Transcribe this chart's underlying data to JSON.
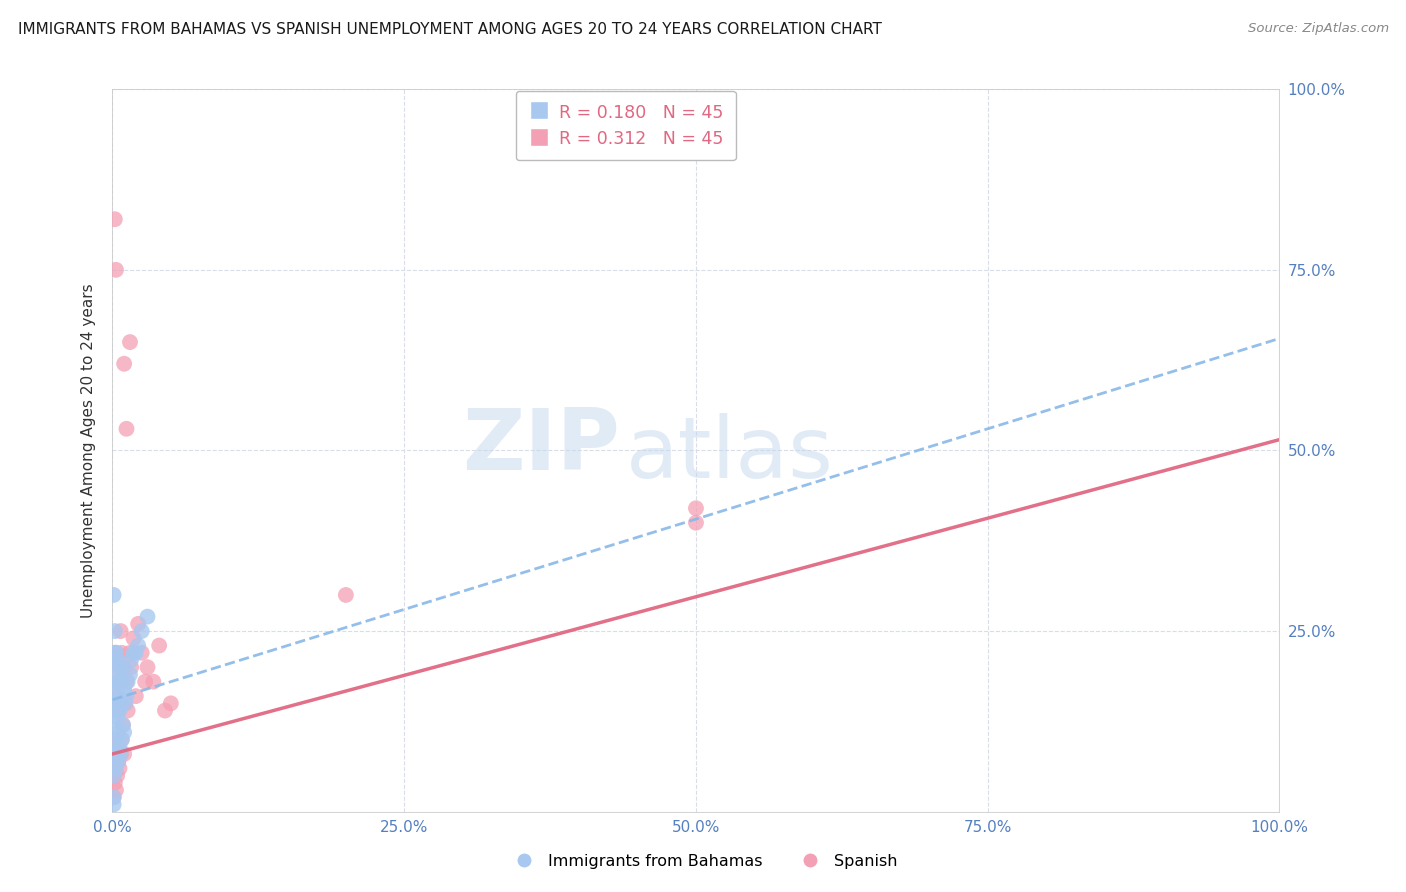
{
  "title": "IMMIGRANTS FROM BAHAMAS VS SPANISH UNEMPLOYMENT AMONG AGES 20 TO 24 YEARS CORRELATION CHART",
  "source": "Source: ZipAtlas.com",
  "ylabel": "Unemployment Among Ages 20 to 24 years",
  "xlim": [
    0.0,
    1.0
  ],
  "ylim": [
    0.0,
    1.0
  ],
  "xtick_vals": [
    0.0,
    0.25,
    0.5,
    0.75,
    1.0
  ],
  "xticklabels": [
    "0.0%",
    "25.0%",
    "50.0%",
    "75.0%",
    "100.0%"
  ],
  "ytick_vals": [
    0.0,
    0.25,
    0.5,
    0.75,
    1.0
  ],
  "yticklabels": [
    "",
    "25.0%",
    "50.0%",
    "75.0%",
    "100.0%"
  ],
  "legend_r1": "R = 0.180",
  "legend_n1": "N = 45",
  "legend_r2": "R = 0.312",
  "legend_n2": "N = 45",
  "color_blue": "#a8c8f0",
  "color_pink": "#f4a0b4",
  "line_blue_color": "#88b8e8",
  "line_pink_color": "#e06882",
  "watermark_zip": "ZIP",
  "watermark_atlas": "atlas",
  "grid_color": "#d8dde8",
  "blue_intercept": 0.155,
  "blue_slope": 0.5,
  "pink_intercept": 0.08,
  "pink_slope": 0.435,
  "blue_dots": {
    "x": [
      0.001,
      0.001,
      0.001,
      0.002,
      0.002,
      0.002,
      0.002,
      0.003,
      0.003,
      0.003,
      0.003,
      0.004,
      0.004,
      0.004,
      0.005,
      0.005,
      0.005,
      0.006,
      0.006,
      0.007,
      0.007,
      0.008,
      0.008,
      0.009,
      0.009,
      0.01,
      0.01,
      0.011,
      0.012,
      0.013,
      0.015,
      0.016,
      0.018,
      0.02,
      0.022,
      0.025,
      0.03,
      0.001,
      0.002,
      0.003,
      0.003,
      0.004,
      0.005,
      0.006,
      0.001
    ],
    "y": [
      0.02,
      0.05,
      0.08,
      0.12,
      0.15,
      0.18,
      0.22,
      0.06,
      0.1,
      0.14,
      0.2,
      0.08,
      0.13,
      0.18,
      0.07,
      0.11,
      0.16,
      0.09,
      0.14,
      0.08,
      0.15,
      0.1,
      0.18,
      0.12,
      0.2,
      0.11,
      0.17,
      0.15,
      0.16,
      0.18,
      0.19,
      0.21,
      0.22,
      0.22,
      0.23,
      0.25,
      0.27,
      0.3,
      0.25,
      0.22,
      0.16,
      0.21,
      0.18,
      0.2,
      0.01
    ]
  },
  "pink_dots": {
    "x": [
      0.001,
      0.001,
      0.001,
      0.002,
      0.002,
      0.002,
      0.003,
      0.003,
      0.003,
      0.004,
      0.004,
      0.005,
      0.005,
      0.006,
      0.006,
      0.007,
      0.007,
      0.008,
      0.008,
      0.009,
      0.01,
      0.01,
      0.011,
      0.012,
      0.013,
      0.015,
      0.016,
      0.018,
      0.02,
      0.022,
      0.025,
      0.028,
      0.03,
      0.035,
      0.04,
      0.045,
      0.05,
      0.5,
      0.5,
      0.2,
      0.01,
      0.012,
      0.015,
      0.003,
      0.002
    ],
    "y": [
      0.02,
      0.05,
      0.09,
      0.04,
      0.1,
      0.16,
      0.03,
      0.08,
      0.22,
      0.05,
      0.14,
      0.07,
      0.2,
      0.06,
      0.18,
      0.08,
      0.25,
      0.1,
      0.22,
      0.12,
      0.08,
      0.2,
      0.15,
      0.18,
      0.14,
      0.22,
      0.2,
      0.24,
      0.16,
      0.26,
      0.22,
      0.18,
      0.2,
      0.18,
      0.23,
      0.14,
      0.15,
      0.4,
      0.42,
      0.3,
      0.62,
      0.53,
      0.65,
      0.75,
      0.82
    ]
  }
}
